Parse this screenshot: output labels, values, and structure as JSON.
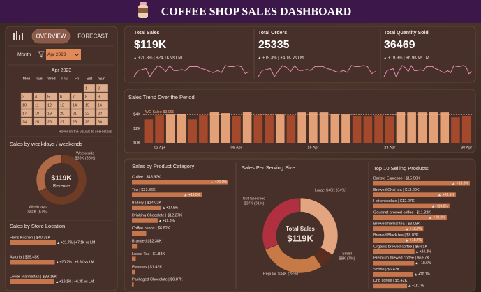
{
  "header": {
    "title": "COFFEE SHOP SALES DASHBOARD"
  },
  "nav": {
    "tabs": [
      "OVERVIEW",
      "FORECAST"
    ]
  },
  "filter": {
    "label": "Month",
    "value": "Apr 2023"
  },
  "calendar": {
    "title": "Apr 2023",
    "weekdays": [
      "Mon",
      "Tue",
      "Wed",
      "Thu",
      "Fri",
      "Sat",
      "Sun"
    ],
    "weeks": [
      [
        null,
        null,
        null,
        null,
        null,
        1,
        2
      ],
      [
        3,
        4,
        5,
        6,
        7,
        8,
        9
      ],
      [
        10,
        11,
        12,
        13,
        14,
        15,
        16
      ],
      [
        17,
        18,
        19,
        20,
        21,
        22,
        23
      ],
      [
        24,
        25,
        26,
        27,
        28,
        29,
        30
      ]
    ],
    "hint": "Hover on the visuals to see details"
  },
  "kpis": [
    {
      "title": "Total Sales",
      "value": "$119K",
      "change": "+20.3% | +24.1K vs LM"
    },
    {
      "title": "Total Orders",
      "value": 25335,
      "change": "+19.3% | +4.1K vs LM",
      "sparkline": [
        700,
        830,
        850,
        870,
        700,
        830,
        935,
        895,
        810,
        935,
        830,
        830,
        850,
        830,
        915,
        915,
        915,
        870,
        850,
        810,
        790,
        830,
        790,
        935,
        915,
        915,
        935,
        915,
        765,
        810
      ]
    },
    {
      "title": "Total Quantity Sold",
      "value": 36469,
      "change": "+19.9% | +6.9K vs LM",
      "sparkline": [
        1010,
        1190,
        1220,
        1250,
        1010,
        1190,
        1345,
        1285,
        1160,
        1345,
        1190,
        1190,
        1220,
        1190,
        1315,
        1315,
        1315,
        1250,
        1220,
        1160,
        1130,
        1190,
        1130,
        1345,
        1315,
        1315,
        1345,
        1315,
        1100,
        1160
      ]
    }
  ],
  "chart_data": [
    {
      "type": "bar",
      "title": "Sales Trend Over the Period",
      "categories": [
        null,
        "02 Apr",
        null,
        null,
        null,
        null,
        null,
        null,
        "09 Apr",
        null,
        null,
        null,
        null,
        null,
        null,
        "16 Apr",
        null,
        null,
        null,
        null,
        null,
        null,
        "23 Apr",
        null,
        null,
        null,
        null,
        null,
        null,
        "30 Apr"
      ],
      "values": [
        3300,
        3900,
        4000,
        4100,
        3300,
        3900,
        4400,
        4200,
        3800,
        4400,
        3900,
        3900,
        4000,
        3900,
        4300,
        4300,
        4300,
        4100,
        4000,
        3800,
        3700,
        3900,
        3700,
        4400,
        4300,
        4300,
        4400,
        4300,
        3600,
        3800
      ],
      "ylim": [
        0,
        4800
      ],
      "yticks": [
        {
          "value": 0,
          "label": "$0K"
        },
        {
          "value": 2000,
          "label": "$2K"
        },
        {
          "value": 4000,
          "label": "$4K"
        }
      ],
      "average": 3965,
      "average_label": "AVG Sales: $3,965",
      "colors": {
        "above": "#e3a077",
        "below": "#a4492c"
      }
    },
    {
      "type": "donut",
      "title": "Sales by weekdays / weekends",
      "categories": [
        "Weekdays",
        "Weekends"
      ],
      "values": [
        80000,
        39000
      ],
      "value_labels": [
        "$80K (67%)",
        "$39K (33%)"
      ],
      "colors": [
        "#6e3b25",
        "#b06a45"
      ],
      "center_value": "$119K",
      "center_label": "Revenue"
    },
    {
      "type": "hbar",
      "title": "Sales by Store Location",
      "categories": [
        "Hell's Kitchen | $40.38K",
        "Astoria | $39.48K",
        "Lower Manhattan | $39.16K"
      ],
      "values": [
        40380,
        39480,
        39160
      ],
      "changes": [
        21.7,
        20.2,
        19.1
      ],
      "change_labels": [
        "+21.7% | +7.1K vs LM",
        "+20.2% | +6.6K vs LM",
        "+19.1% | +6.3K vs LM"
      ],
      "color": "#c6764c"
    },
    {
      "type": "hbar",
      "title": "Sales by Product Category",
      "categories": [
        "Coffee | $45.97K",
        "Tea | $33.36K",
        "Bakery | $14.02K",
        "Drinking Chocolate | $12.27K",
        "Coffee beans | $6.82K",
        "Branded | $2.38K",
        "Loose Tea | $1.83K",
        "Flavours | $1.42K",
        "Packaged Chocolate | $0.87K"
      ],
      "values": [
        45970,
        33360,
        14020,
        12270,
        6820,
        2380,
        1830,
        1420,
        870
      ],
      "changes": [
        20.0,
        19.5,
        17.8,
        19.6,
        null,
        null,
        null,
        null,
        null
      ],
      "change_labels": [
        "+20.0%",
        "+19.5%",
        "+17.8%",
        "+19.6%",
        null,
        null,
        null,
        null,
        null
      ],
      "color": "#c6764c"
    },
    {
      "type": "donut",
      "title": "Sales Per Serving Size",
      "categories": [
        "Large",
        "Small",
        "Regular",
        "Not Specified"
      ],
      "values": [
        40000,
        8000,
        34000,
        37000
      ],
      "value_labels": [
        "$40K (34%)",
        "$8K (7%)",
        "$34K (28%)",
        "$37K (31%)"
      ],
      "colors": [
        "#e2a57f",
        "#5a2e1c",
        "#c77a45",
        "#b0303f"
      ],
      "center_value": "$119K",
      "center_label": "Total Sales"
    },
    {
      "type": "hbar",
      "title": "Top 10 Selling Products",
      "categories": [
        "Barista Espresso | $15.56K",
        "Brewed Chai tea | $13.29K",
        "Hot chocolate | $12.27K",
        "Gourmet brewed coffee | $11.82K",
        "Brewed herbal tea | $8.05K",
        "Brewed Black tea | $8.02K",
        "Organic brewed coffee | $6.61K",
        "Premium brewed coffee | $6.57K",
        "Scone | $6.43K",
        "Drip coffee | $5.42K"
      ],
      "values": [
        15560,
        13290,
        12270,
        11820,
        8050,
        8020,
        6610,
        6570,
        6430,
        5420
      ],
      "changes": [
        18.9,
        20.5,
        19.6,
        20.8,
        16.7,
        18.7,
        24.2,
        18.6,
        20.7,
        18.7
      ],
      "change_labels": [
        "+18.9%",
        "+20.5%",
        "+19.6%",
        "+20.8%",
        "+16.7%",
        "+18.7%",
        "+24.2%",
        "+18.6%",
        "+20.7%",
        "+18.7%"
      ],
      "color": "#c6764c"
    }
  ]
}
